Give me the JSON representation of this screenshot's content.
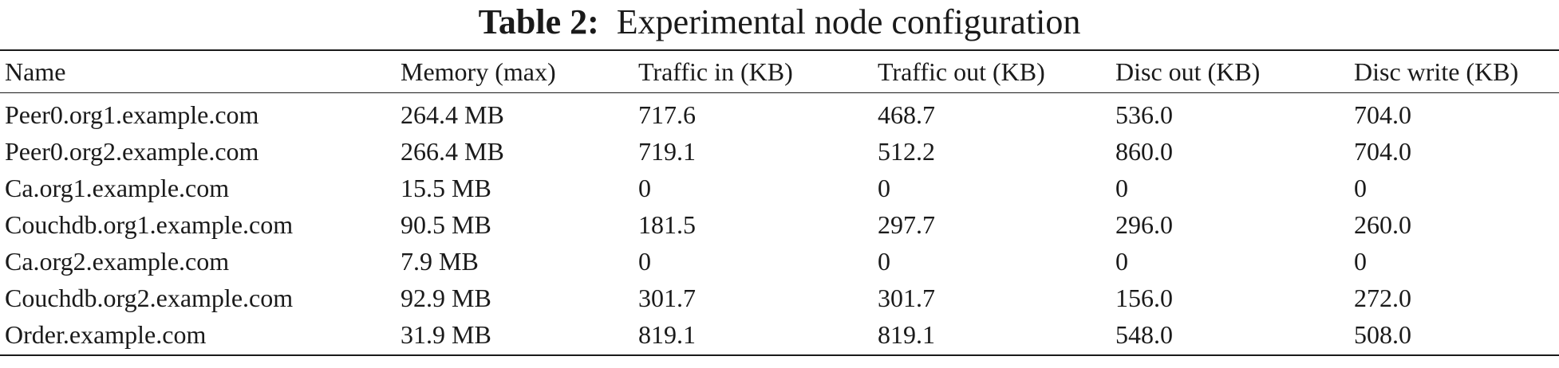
{
  "caption": {
    "label": "Table 2:",
    "text": "Experimental node configuration"
  },
  "table": {
    "headers": [
      "Name",
      "Memory (max)",
      "Traffic in (KB)",
      "Traffic out (KB)",
      "Disc out (KB)",
      "Disc write (KB)"
    ],
    "rows": [
      [
        "Peer0.org1.example.com",
        "264.4 MB",
        "717.6",
        "468.7",
        "536.0",
        "704.0"
      ],
      [
        "Peer0.org2.example.com",
        "266.4 MB",
        "719.1",
        "512.2",
        "860.0",
        "704.0"
      ],
      [
        "Ca.org1.example.com",
        "15.5 MB",
        "0",
        "0",
        "0",
        "0"
      ],
      [
        "Couchdb.org1.example.com",
        "90.5 MB",
        "181.5",
        "297.7",
        "296.0",
        "260.0"
      ],
      [
        "Ca.org2.example.com",
        "7.9 MB",
        "0",
        "0",
        "0",
        "0"
      ],
      [
        "Couchdb.org2.example.com",
        "92.9 MB",
        "301.7",
        "301.7",
        "156.0",
        "272.0"
      ],
      [
        "Order.example.com",
        "31.9 MB",
        "819.1",
        "819.1",
        "548.0",
        "508.0"
      ]
    ]
  }
}
